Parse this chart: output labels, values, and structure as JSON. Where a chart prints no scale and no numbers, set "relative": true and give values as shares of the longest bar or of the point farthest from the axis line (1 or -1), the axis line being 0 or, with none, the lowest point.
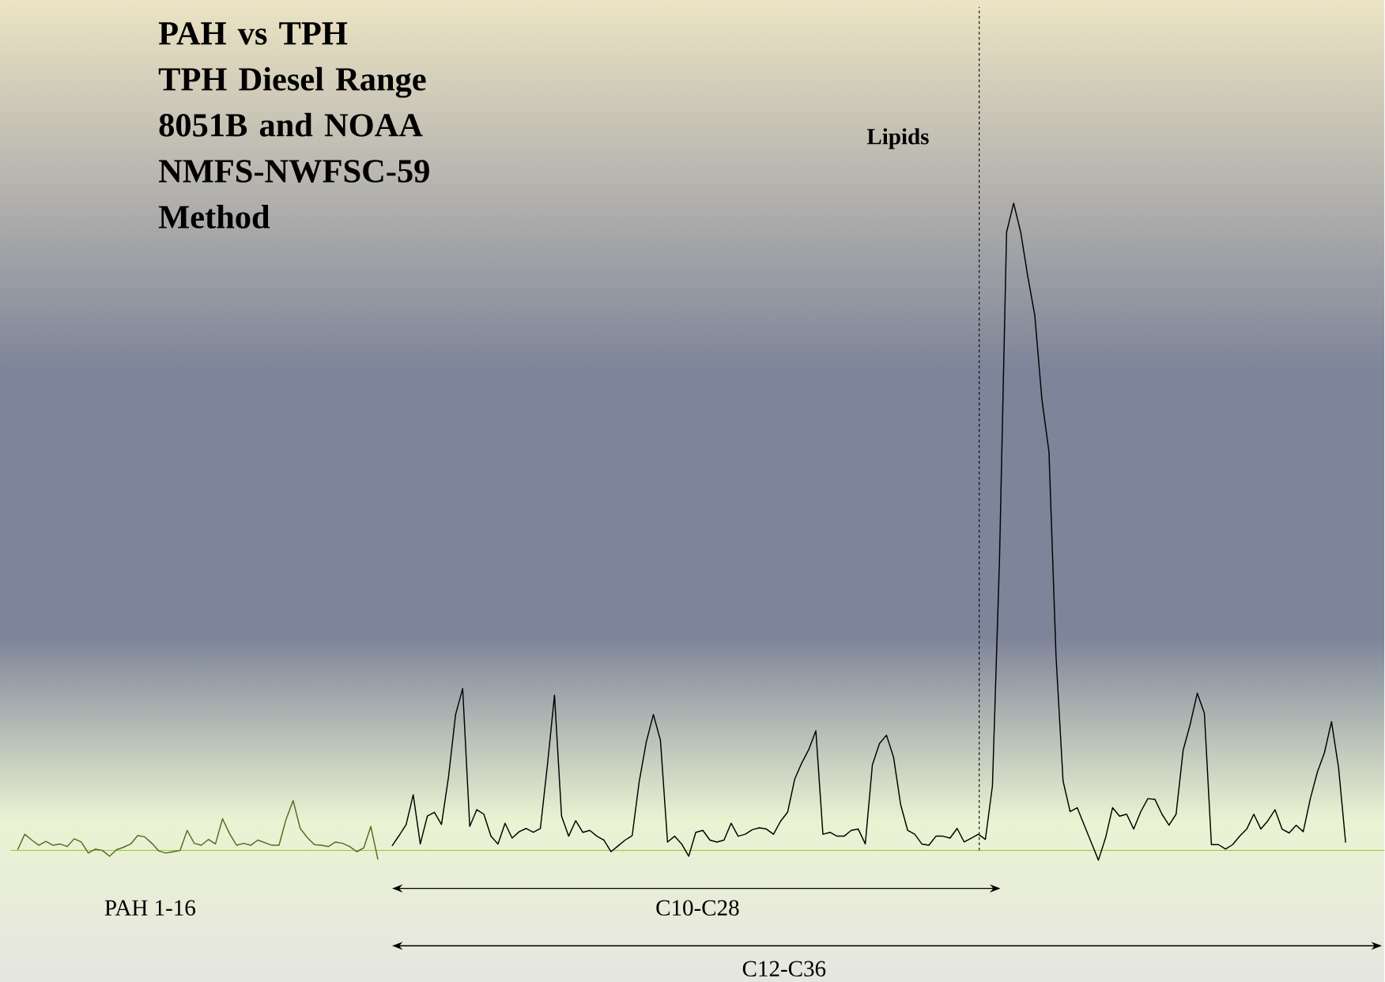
{
  "chart_data": {
    "type": "line",
    "relative": true,
    "title": "PAH vs TPH",
    "subtitle": "TPH Diesel Range 8051B and NOAA NMFS-NWFSC-59 Method",
    "categories": [
      null,
      null,
      null,
      null,
      null,
      null,
      null,
      null,
      null,
      null,
      null,
      null,
      null,
      null,
      null,
      null,
      null,
      null,
      null,
      null,
      null,
      null,
      null,
      null,
      null,
      null,
      null,
      null,
      null,
      null,
      null,
      null,
      null,
      null,
      null,
      null,
      null,
      null,
      null,
      null,
      null,
      null,
      null,
      null,
      null,
      null,
      null,
      null,
      null,
      null,
      null,
      null,
      null,
      null,
      null,
      null,
      null,
      null,
      null,
      null,
      null,
      null,
      null,
      null,
      null,
      null,
      null,
      null,
      null,
      null,
      null,
      null,
      null,
      null,
      null,
      null,
      null,
      null,
      null,
      null,
      null,
      null,
      null,
      null,
      null,
      null,
      null,
      null,
      null,
      null,
      null,
      null,
      null,
      null,
      null,
      null,
      null,
      null,
      null,
      null,
      null,
      null,
      null,
      null,
      null,
      null,
      null,
      null,
      null,
      null,
      null,
      null,
      null,
      null,
      null,
      null,
      null,
      null,
      null,
      null,
      null,
      null,
      null,
      null,
      null,
      null,
      null,
      null,
      null,
      null,
      null,
      null,
      null,
      null,
      null,
      null,
      null,
      null,
      null,
      null,
      null,
      null,
      null,
      null,
      null,
      null,
      null,
      null,
      null,
      null,
      null,
      null,
      null,
      null,
      null,
      null,
      null,
      null,
      null,
      null,
      null,
      null,
      null,
      null,
      null,
      null,
      null,
      null,
      null,
      null,
      null,
      null,
      null,
      null,
      null,
      null,
      null,
      null,
      null,
      null,
      null,
      null,
      null,
      null,
      null,
      null,
      null,
      null,
      null
    ],
    "series": [
      {
        "color": "#556b1e",
        "values": [
          0.001,
          0.025,
          0.016,
          0.008,
          0.014,
          0.008,
          0.01,
          0.006,
          0.018,
          0.013,
          -0.004,
          0.002,
          0,
          -0.009,
          0.001,
          0.005,
          0.01,
          0.023,
          0.021,
          0.011,
          -0.001,
          -0.004,
          -0.002,
          0,
          0.031,
          0.011,
          0.008,
          0.017,
          0.01,
          0.049,
          0.026,
          0.008,
          0.011,
          0.008,
          0.016,
          0.012,
          0.008,
          0.008,
          0.048,
          0.077,
          0.034,
          0.02,
          0.009,
          0.008,
          0.006,
          0.013,
          0.011,
          0.006,
          -0.002,
          0.004,
          0.037,
          -0.014,
          null,
          null,
          null,
          null,
          null,
          null,
          null,
          null,
          null,
          null,
          null,
          null,
          null,
          null,
          null,
          null,
          null,
          null,
          null,
          null,
          null,
          null,
          null,
          null,
          null,
          null,
          null,
          null,
          null,
          null,
          null,
          null,
          null,
          null,
          null,
          null,
          null,
          null,
          null,
          null,
          null,
          null,
          null,
          null,
          null,
          null,
          null,
          null,
          null,
          null,
          null,
          null,
          null,
          null,
          null,
          null,
          null,
          null,
          null,
          null,
          null,
          null,
          null,
          null,
          null,
          null,
          null,
          null,
          null,
          null,
          null,
          null,
          null,
          null,
          null,
          null,
          null,
          null,
          null,
          null,
          null,
          null,
          null,
          null,
          null,
          null,
          null,
          null,
          null,
          null,
          null,
          null,
          null,
          null,
          null,
          null,
          null,
          null,
          null,
          null,
          null,
          null,
          null,
          null,
          null,
          null,
          null,
          null,
          null,
          null,
          null,
          null,
          null,
          null,
          null,
          null,
          null,
          null,
          null,
          null,
          null,
          null,
          null,
          null,
          null,
          null,
          null,
          null,
          null,
          null,
          null,
          null,
          null,
          null,
          null,
          null,
          null
        ]
      },
      {
        "color": "#000000",
        "values": [
          null,
          null,
          null,
          null,
          null,
          null,
          null,
          null,
          null,
          null,
          null,
          null,
          null,
          null,
          null,
          null,
          null,
          null,
          null,
          null,
          null,
          null,
          null,
          null,
          null,
          null,
          null,
          null,
          null,
          null,
          null,
          null,
          null,
          null,
          null,
          null,
          null,
          null,
          null,
          null,
          null,
          null,
          null,
          null,
          null,
          null,
          null,
          null,
          null,
          null,
          null,
          null,
          null,
          0.007,
          0.023,
          0.04,
          0.086,
          0.01,
          0.053,
          0.059,
          0.04,
          0.114,
          0.21,
          0.25,
          0.037,
          0.063,
          0.056,
          0.022,
          0.01,
          0.042,
          0.019,
          0.029,
          0.034,
          0.028,
          0.034,
          0.132,
          0.24,
          0.053,
          0.022,
          0.046,
          0.028,
          0.031,
          0.022,
          0.016,
          -0.002,
          0.007,
          0.016,
          0.023,
          0.107,
          0.168,
          0.21,
          0.17,
          0.013,
          0.022,
          0.01,
          -0.009,
          0.028,
          0.031,
          0.016,
          0.013,
          0.016,
          0.042,
          0.022,
          0.025,
          0.032,
          0.035,
          0.033,
          0.025,
          0.045,
          0.059,
          0.11,
          0.135,
          0.156,
          0.185,
          0.025,
          0.028,
          0.022,
          0.022,
          0.031,
          0.033,
          0.01,
          0.132,
          0.165,
          0.178,
          0.144,
          0.071,
          0.031,
          0.025,
          0.01,
          0.008,
          0.022,
          0.022,
          0.019,
          0.034,
          0.013,
          0.019,
          0.025,
          0.017,
          0.1,
          0.45,
          0.955,
          1,
          0.955,
          0.887,
          0.826,
          0.697,
          0.616,
          0.3,
          0.107,
          0.06,
          0.066,
          0.039,
          0.012,
          -0.015,
          0.019,
          0.066,
          0.053,
          0.056,
          0.033,
          0.06,
          0.08,
          0.079,
          0.056,
          0.039,
          0.056,
          0.155,
          0.195,
          0.243,
          0.212,
          0.009,
          0.009,
          0.002,
          0.009,
          0.022,
          0.033,
          0.056,
          0.033,
          0.046,
          0.063,
          0.033,
          0.027,
          0.039,
          0.029,
          0.08,
          0.121,
          0.151,
          0.199,
          0.128,
          0.012
        ]
      }
    ],
    "annotations": [
      "PAH 1-16",
      "C10-C28",
      "C12-C36",
      "Lipids"
    ],
    "ref_lines": [
      {
        "axis": "y",
        "value": 0,
        "color": "#99cc33"
      }
    ],
    "marker": "none",
    "line_style": "solid"
  }
}
